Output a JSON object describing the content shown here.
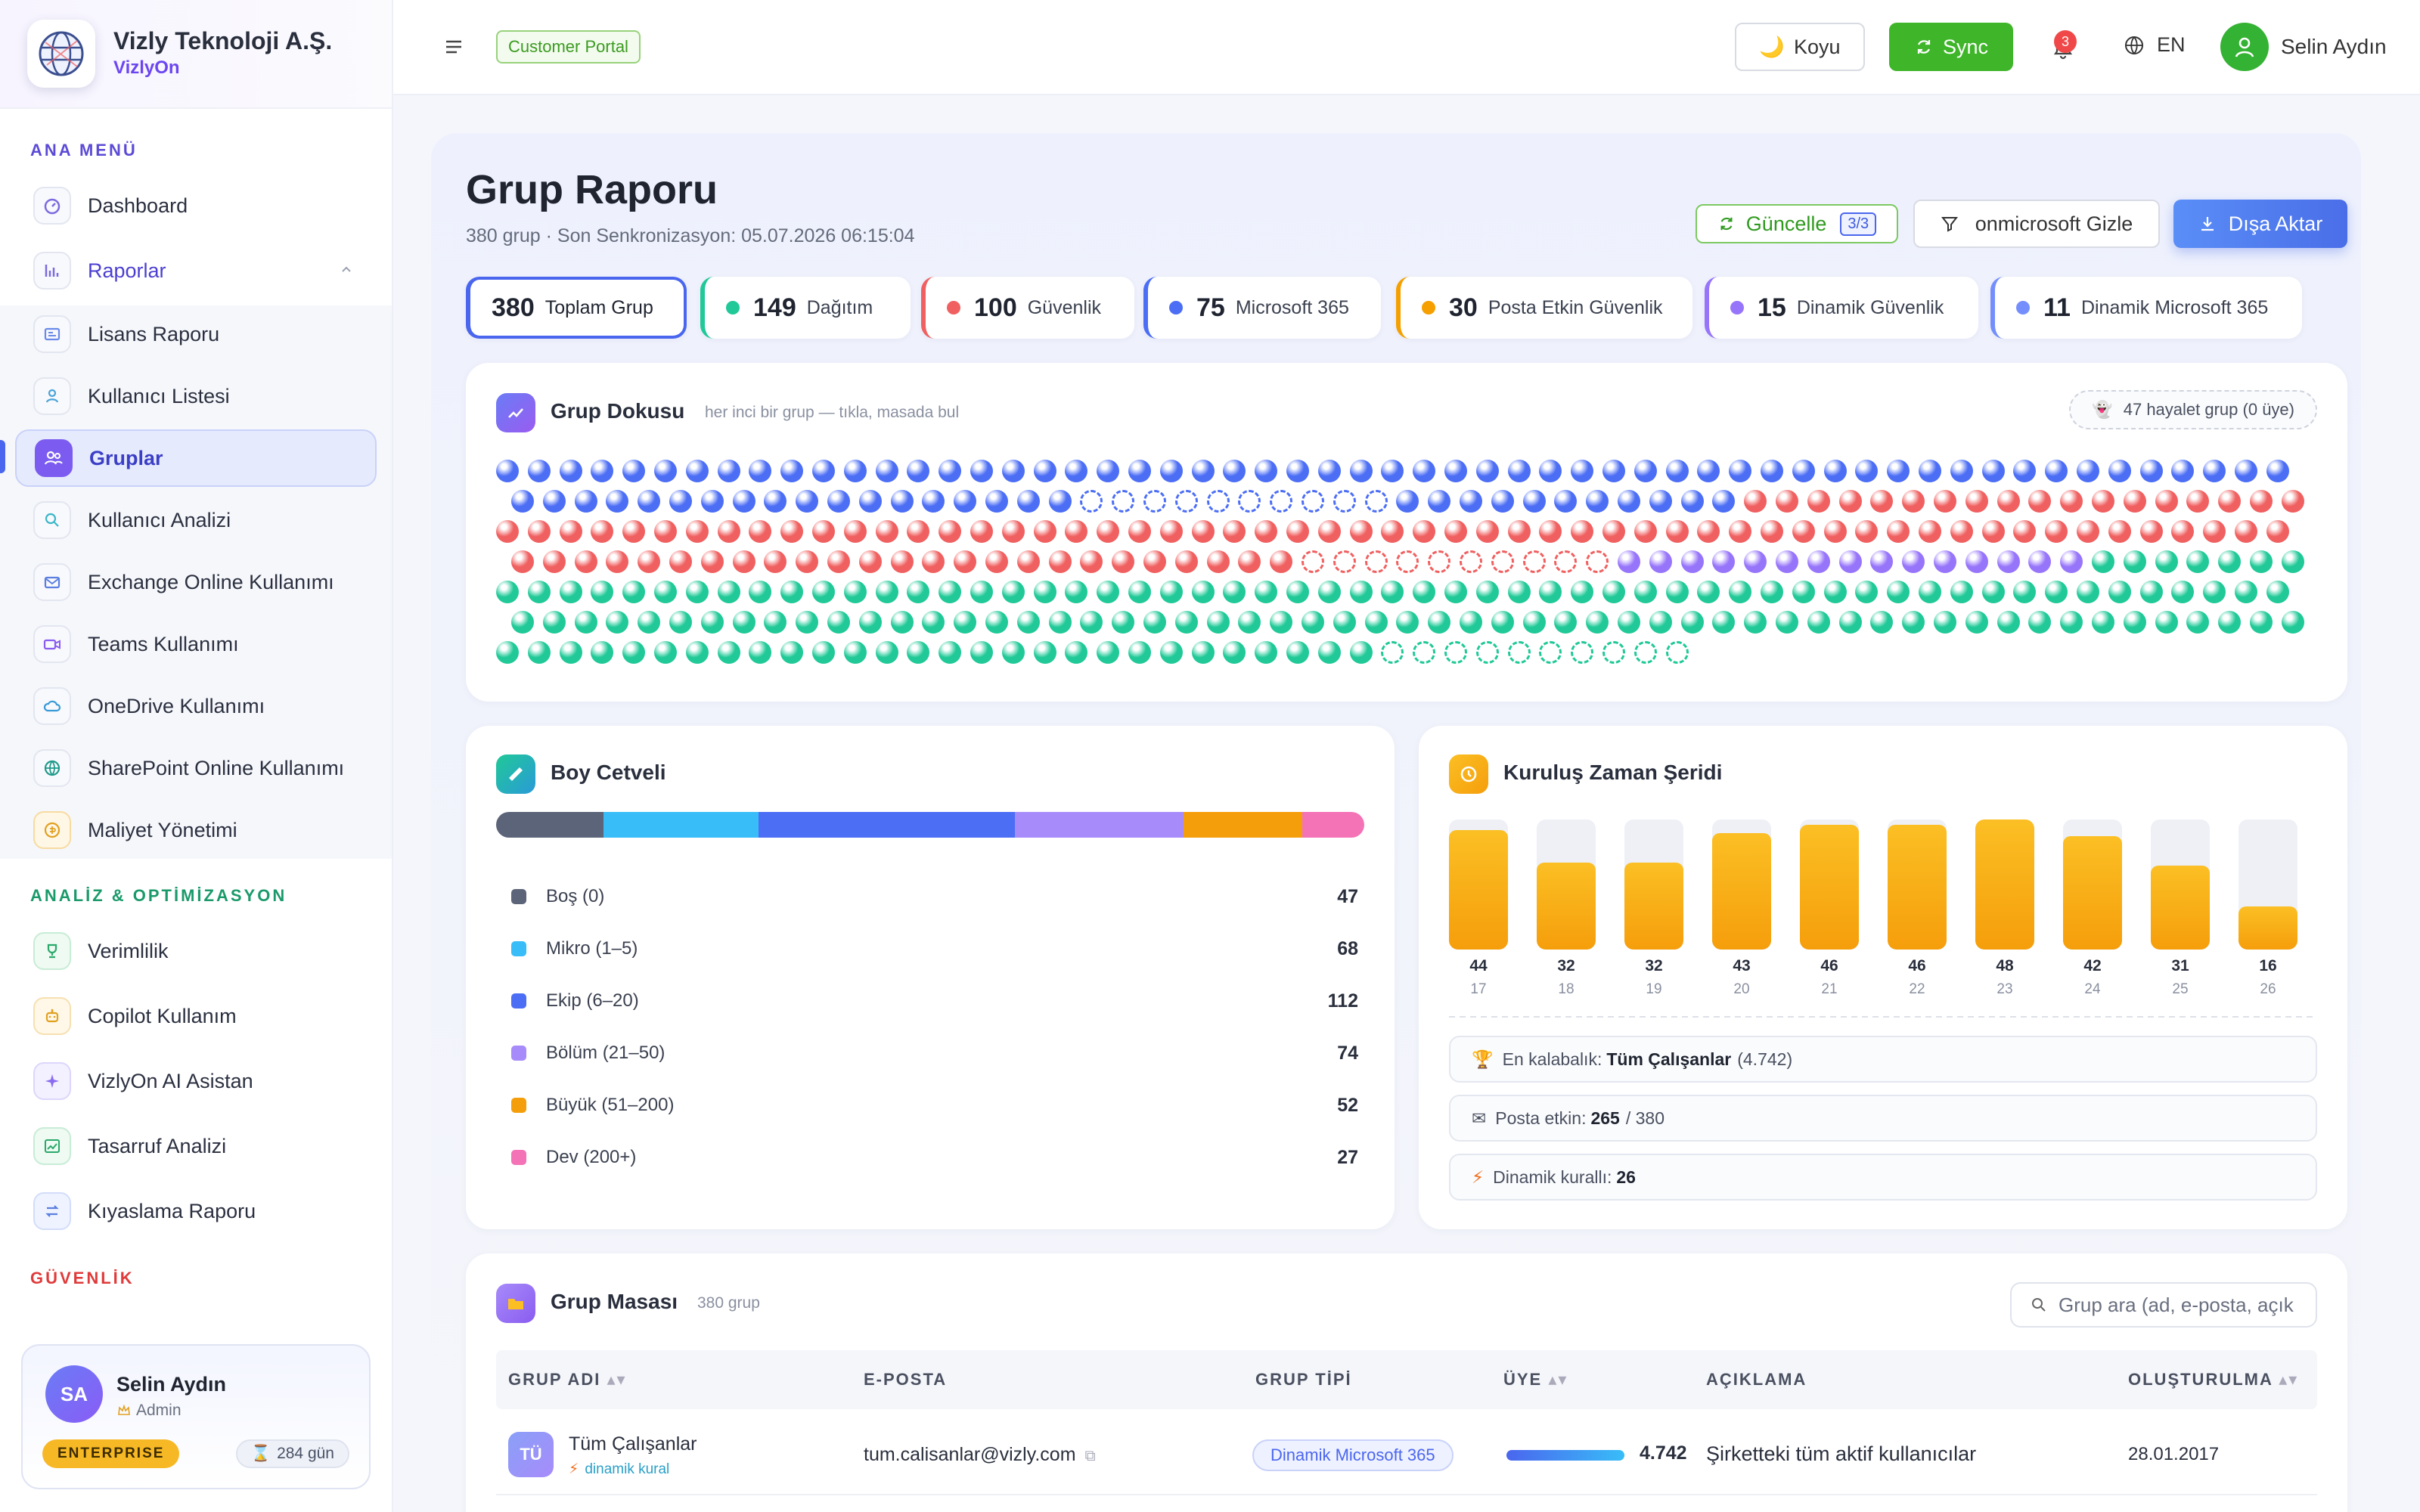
{
  "sidebar": {
    "company": "Vizly Teknoloji A.Ş.",
    "product": "VizlyOn",
    "sections": {
      "main": "ANA MENÜ",
      "analysis": "ANALİZ & OPTİMİZASYON",
      "security": "GÜVENLİK"
    },
    "main_items": [
      {
        "label": "Dashboard",
        "icon": "dashboard-icon"
      },
      {
        "label": "Raporlar",
        "icon": "chart-icon"
      }
    ],
    "report_items": [
      {
        "label": "Lisans Raporu",
        "icon": "license-icon"
      },
      {
        "label": "Kullanıcı Listesi",
        "icon": "user-icon"
      },
      {
        "label": "Gruplar",
        "icon": "group-icon",
        "active": true
      },
      {
        "label": "Kullanıcı Analizi",
        "icon": "search-icon"
      },
      {
        "label": "Exchange Online Kullanımı",
        "icon": "mail-icon"
      },
      {
        "label": "Teams Kullanımı",
        "icon": "video-icon"
      },
      {
        "label": "OneDrive Kullanımı",
        "icon": "cloud-icon"
      },
      {
        "label": "SharePoint Online Kullanımı",
        "icon": "globe-icon"
      },
      {
        "label": "Maliyet Yönetimi",
        "icon": "coin-icon"
      }
    ],
    "analysis_items": [
      {
        "label": "Verimlilik",
        "icon": "trophy-icon"
      },
      {
        "label": "Copilot Kullanım",
        "icon": "robot-icon"
      },
      {
        "label": "VizlyOn AI Asistan",
        "icon": "sparkle-icon"
      },
      {
        "label": "Tasarruf Analizi",
        "icon": "trend-icon"
      },
      {
        "label": "Kıyaslama Raporu",
        "icon": "compare-icon"
      }
    ],
    "user": {
      "initials": "SA",
      "name": "Selin Aydın",
      "role": "Admin",
      "plan": "ENTERPRISE",
      "days": "284 gün"
    }
  },
  "topbar": {
    "portal": "Customer Portal",
    "theme_label": "Koyu",
    "sync_label": "Sync",
    "notifications": "3",
    "lang": "EN",
    "user_name": "Selin Aydın"
  },
  "page": {
    "title": "Grup Raporu",
    "subtitle": "380 grup · Son Senkronizasyon: 05.07.2026 06:15:04",
    "refresh_label": "Güncelle",
    "refresh_count": "3/3",
    "filter_label": "onmicrosoft Gizle",
    "export_label": "Dışa Aktar"
  },
  "stats": [
    {
      "num": "380",
      "label": "Toplam Grup",
      "color": "#3b5bdb"
    },
    {
      "num": "149",
      "label": "Dağıtım",
      "color": "#20c997"
    },
    {
      "num": "100",
      "label": "Güvenlik",
      "color": "#f06060"
    },
    {
      "num": "75",
      "label": "Microsoft 365",
      "color": "#4c6ef5"
    },
    {
      "num": "30",
      "label": "Posta Etkin Güvenlik",
      "color": "#f59f00"
    },
    {
      "num": "15",
      "label": "Dinamik Güvenlik",
      "color": "#9775fa"
    },
    {
      "num": "11",
      "label": "Dinamik Microsoft 365",
      "color": "#748ffc"
    }
  ],
  "texture": {
    "title": "Grup Dokusu",
    "hint": "her inci bir grup — tıkla, masada bul",
    "ghost": "47 hayalet grup (0 üye)",
    "colors": {
      "m365": "#4c6ef5",
      "security": "#f06060",
      "dyn_security": "#9775fa",
      "distribution": "#20c997",
      "mail_security": "#f59f00"
    }
  },
  "ruler": {
    "title": "Boy Cetveli",
    "items": [
      {
        "label": "Boş (0)",
        "value": 47,
        "color": "#5b6478"
      },
      {
        "label": "Mikro (1–5)",
        "value": 68,
        "color": "#38bdf8"
      },
      {
        "label": "Ekip (6–20)",
        "value": 112,
        "color": "#4c6ef5"
      },
      {
        "label": "Bölüm (21–50)",
        "value": 74,
        "color": "#a78bfa"
      },
      {
        "label": "Büyük (51–200)",
        "value": 52,
        "color": "#f59e0b"
      },
      {
        "label": "Dev (200+)",
        "value": 27,
        "color": "#f472b6"
      }
    ]
  },
  "timeline": {
    "title": "Kuruluş Zaman Şeridi",
    "chart_data": {
      "type": "bar",
      "categories": [
        "17",
        "18",
        "19",
        "20",
        "21",
        "22",
        "23",
        "24",
        "25",
        "26"
      ],
      "values": [
        44,
        32,
        32,
        43,
        46,
        46,
        48,
        42,
        31,
        16
      ]
    },
    "max_label": "En kalabalık:",
    "max_group": "Tüm Çalışanlar",
    "max_count": "(4.742)",
    "mail_label": "Posta etkin:",
    "mail_value": "265",
    "mail_total": "/ 380",
    "dyn_label": "Dinamik kurallı:",
    "dyn_value": "26"
  },
  "table": {
    "title": "Grup Masası",
    "count": "380 grup",
    "search_placeholder": "Grup ara (ad, e-posta, açık",
    "headers": {
      "name": "GRUP ADI",
      "email": "E-POSTA",
      "type": "GRUP TİPİ",
      "members": "ÜYE",
      "desc": "AÇIKLAMA",
      "created": "OLUŞTURULMA"
    },
    "rows": [
      {
        "initials": "TÜ",
        "name": "Tüm Çalışanlar",
        "rule": "dinamik kural",
        "email": "tum.calisanlar@vizly.com",
        "type": "Dinamik Microsoft 365",
        "members": "4.742",
        "desc": "Şirketteki tüm aktif kullanıcılar",
        "created": "28.01.2017"
      }
    ]
  }
}
